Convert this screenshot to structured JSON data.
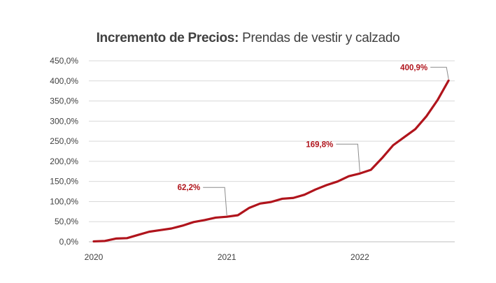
{
  "chart_data": {
    "type": "line",
    "title_bold": "Incremento de Precios:",
    "title_rest": "Prendas de vestir y calzado",
    "xlabel": "",
    "ylabel": "",
    "x_tick_labels": [
      {
        "index": 0,
        "label": "2020"
      },
      {
        "index": 12,
        "label": "2021"
      },
      {
        "index": 24,
        "label": "2022"
      }
    ],
    "y_tick_labels": [
      "0,0%",
      "50,0%",
      "100,0%",
      "150,0%",
      "200,0%",
      "250,0%",
      "300,0%",
      "350,0%",
      "400,0%",
      "450,0%"
    ],
    "ylim": [
      0,
      450
    ],
    "grid": "horizontal",
    "line_color": "#b0141c",
    "series": [
      {
        "values": [
          1,
          2,
          8,
          9,
          17,
          25,
          29,
          33,
          40,
          49,
          54,
          60,
          62.2,
          66,
          84,
          95,
          99,
          107,
          109,
          117,
          130,
          141,
          150,
          163,
          169.8,
          179,
          208,
          240,
          260,
          280,
          312,
          352,
          400.9
        ]
      }
    ],
    "annotations": [
      {
        "index": 12,
        "label": "62,2%"
      },
      {
        "index": 24,
        "label": "169,8%"
      },
      {
        "index": 32,
        "label": "400,9%"
      }
    ]
  }
}
